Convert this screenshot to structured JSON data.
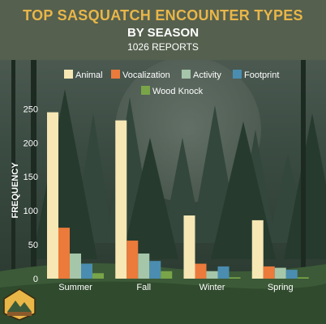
{
  "header": {
    "title_line1": "TOP SASQUATCH ENCOUNTER TYPES",
    "title_line2": "BY SEASON",
    "subtitle": "1026 REPORTS"
  },
  "colors": {
    "Animal": "#f6e7b4",
    "Vocalization": "#eb7a3b",
    "Activity": "#a5c6a9",
    "Footprint": "#4a8db0",
    "Wood Knock": "#79a548",
    "header_bg": "#55604f",
    "title_accent": "#e9b648"
  },
  "chart_data": {
    "type": "bar",
    "title": "TOP SASQUATCH ENCOUNTER TYPES BY SEASON",
    "subtitle": "1026 REPORTS",
    "xlabel": "",
    "ylabel": "FREQUENCY",
    "categories": [
      "Summer",
      "Fall",
      "Winter",
      "Spring"
    ],
    "series": [
      {
        "name": "Animal",
        "values": [
          245,
          233,
          93,
          86
        ]
      },
      {
        "name": "Vocalization",
        "values": [
          75,
          56,
          22,
          18
        ]
      },
      {
        "name": "Activity",
        "values": [
          37,
          37,
          11,
          16
        ]
      },
      {
        "name": "Footprint",
        "values": [
          22,
          26,
          18,
          13
        ]
      },
      {
        "name": "Wood Knock",
        "values": [
          8,
          11,
          2,
          2
        ]
      }
    ],
    "ylim": [
      0,
      260
    ],
    "yticks": [
      0,
      50,
      100,
      150,
      200,
      250
    ],
    "legend": "top",
    "grid": false
  }
}
